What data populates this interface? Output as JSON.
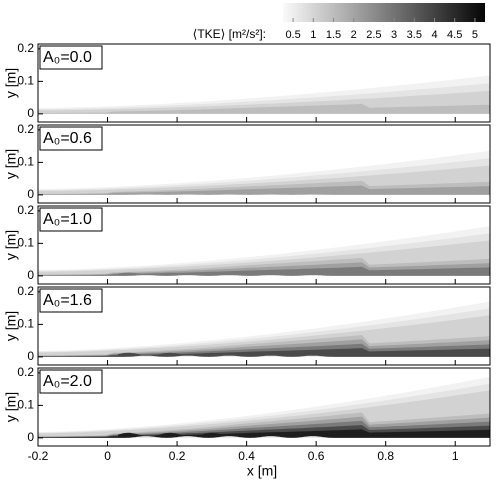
{
  "colorbar": {
    "label": "⟨TKE⟩ [m²/s²]:",
    "lim": [
      0.25,
      5.25
    ],
    "ticks": [
      0.5,
      1,
      1.5,
      2,
      2.5,
      3,
      3.5,
      4,
      4.5,
      5
    ]
  },
  "chart_data": [
    {
      "type": "contour",
      "annotation": "A₀=0.0",
      "ylabel": "y [m]",
      "xlim": [
        -0.2,
        1.1
      ],
      "ylim": [
        -0.025,
        0.215
      ],
      "yticks": [
        0,
        0.1,
        0.2
      ],
      "xticks": [
        -0.2,
        0,
        0.2,
        0.4,
        0.6,
        0.8,
        1
      ]
    },
    {
      "type": "contour",
      "annotation": "A₀=0.6",
      "ylabel": "y [m]",
      "xlim": [
        -0.2,
        1.1
      ],
      "ylim": [
        -0.025,
        0.215
      ],
      "yticks": [
        0,
        0.1,
        0.2
      ],
      "xticks": [
        -0.2,
        0,
        0.2,
        0.4,
        0.6,
        0.8,
        1
      ]
    },
    {
      "type": "contour",
      "annotation": "A₀=1.0",
      "ylabel": "y [m]",
      "xlim": [
        -0.2,
        1.1
      ],
      "ylim": [
        -0.025,
        0.215
      ],
      "yticks": [
        0,
        0.1,
        0.2
      ],
      "xticks": [
        -0.2,
        0,
        0.2,
        0.4,
        0.6,
        0.8,
        1
      ]
    },
    {
      "type": "contour",
      "annotation": "A₀=1.6",
      "ylabel": "y [m]",
      "xlim": [
        -0.2,
        1.1
      ],
      "ylim": [
        -0.025,
        0.215
      ],
      "yticks": [
        0,
        0.1,
        0.2
      ],
      "xticks": [
        -0.2,
        0,
        0.2,
        0.4,
        0.6,
        0.8,
        1
      ]
    },
    {
      "type": "contour",
      "annotation": "A₀=2.0",
      "ylabel": "y [m]",
      "xlim": [
        -0.2,
        1.1
      ],
      "ylim": [
        -0.025,
        0.215
      ],
      "yticks": [
        0,
        0.1,
        0.2
      ],
      "xticks": [
        -0.2,
        0,
        0.2,
        0.4,
        0.6,
        0.8,
        1
      ],
      "xlabel": "x [m]"
    }
  ]
}
